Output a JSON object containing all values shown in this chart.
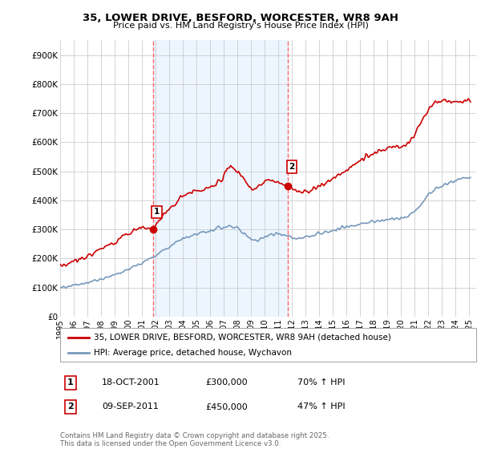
{
  "title_line1": "35, LOWER DRIVE, BESFORD, WORCESTER, WR8 9AH",
  "title_line2": "Price paid vs. HM Land Registry's House Price Index (HPI)",
  "xlim_start": 1995.0,
  "xlim_end": 2025.5,
  "ylim_min": 0,
  "ylim_max": 950000,
  "yticks": [
    0,
    100000,
    200000,
    300000,
    400000,
    500000,
    600000,
    700000,
    800000,
    900000
  ],
  "ytick_labels": [
    "£0",
    "£100K",
    "£200K",
    "£300K",
    "£400K",
    "£500K",
    "£600K",
    "£700K",
    "£800K",
    "£900K"
  ],
  "xticks": [
    1995,
    1996,
    1997,
    1998,
    1999,
    2000,
    2001,
    2002,
    2003,
    2004,
    2005,
    2006,
    2007,
    2008,
    2009,
    2010,
    2011,
    2012,
    2013,
    2014,
    2015,
    2016,
    2017,
    2018,
    2019,
    2020,
    2021,
    2022,
    2023,
    2024,
    2025
  ],
  "sale1_x": 2001.79,
  "sale1_y": 300000,
  "sale1_label": "1",
  "sale2_x": 2011.69,
  "sale2_y": 450000,
  "sale2_label": "2",
  "vline1_x": 2001.79,
  "vline2_x": 2011.69,
  "vline_color": "#ff6666",
  "vline_style": "--",
  "shading_color": "#ddeeff",
  "shading_alpha": 0.5,
  "red_line_color": "#cc0000",
  "blue_line_color": "#7799bb",
  "legend_label_red": "35, LOWER DRIVE, BESFORD, WORCESTER, WR8 9AH (detached house)",
  "legend_label_blue": "HPI: Average price, detached house, Wychavon",
  "annotation1_date": "18-OCT-2001",
  "annotation1_price": "£300,000",
  "annotation1_hpi": "70% ↑ HPI",
  "annotation2_date": "09-SEP-2011",
  "annotation2_price": "£450,000",
  "annotation2_hpi": "47% ↑ HPI",
  "footer": "Contains HM Land Registry data © Crown copyright and database right 2025.\nThis data is licensed under the Open Government Licence v3.0.",
  "bg_color": "#ffffff",
  "plot_bg_color": "#ffffff",
  "grid_color": "#cccccc",
  "noise_seed": 42
}
